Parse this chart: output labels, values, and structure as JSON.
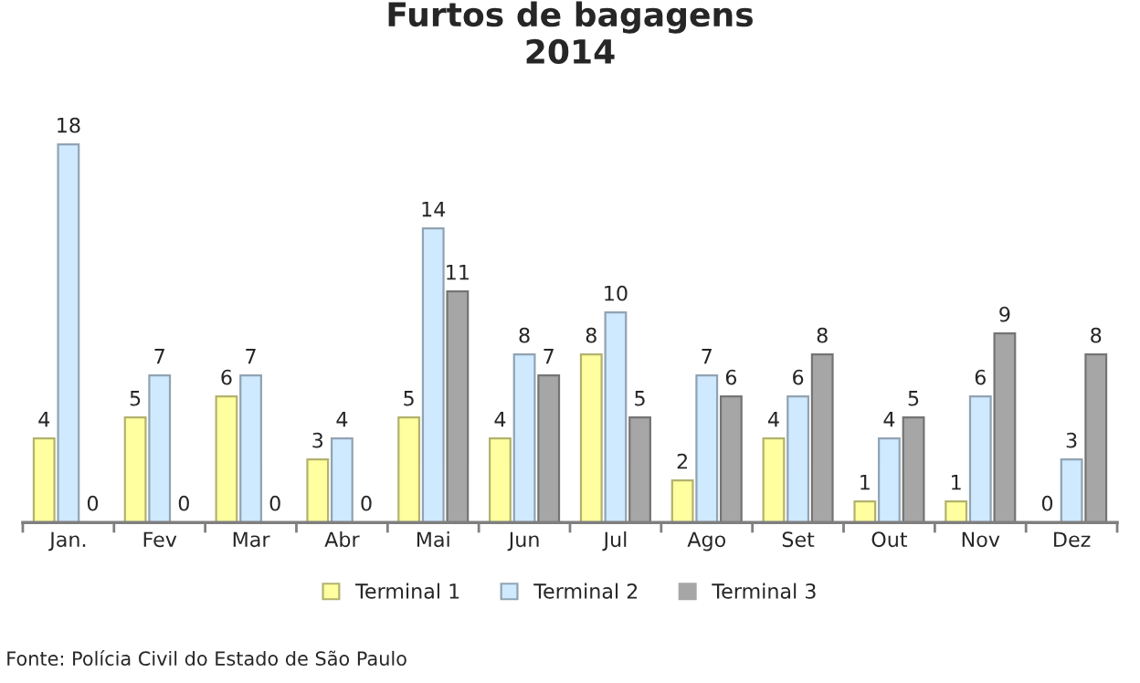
{
  "chart_data": {
    "type": "bar",
    "title": "Furtos de bagagens\n2014",
    "categories": [
      "Jan.",
      "Fev",
      "Mar",
      "Abr",
      "Mai",
      "Jun",
      "Jul",
      "Ago",
      "Set",
      "Out",
      "Nov",
      "Dez"
    ],
    "series": [
      {
        "name": "Terminal 1",
        "color": "#ffff9f",
        "values": [
          4,
          5,
          6,
          3,
          5,
          4,
          8,
          2,
          4,
          1,
          1,
          0
        ]
      },
      {
        "name": "Terminal 2",
        "color": "#cfe9ff",
        "values": [
          18,
          7,
          7,
          4,
          14,
          8,
          10,
          7,
          6,
          4,
          6,
          3
        ]
      },
      {
        "name": "Terminal 3",
        "color": "#a6a6a6",
        "values": [
          0,
          0,
          0,
          0,
          11,
          7,
          5,
          6,
          8,
          5,
          9,
          8
        ]
      }
    ],
    "data_labels": true,
    "legend": "bottom",
    "grid": false,
    "annotations": [
      "Fonte: Polícia Civil do Estado de São Paulo"
    ]
  }
}
